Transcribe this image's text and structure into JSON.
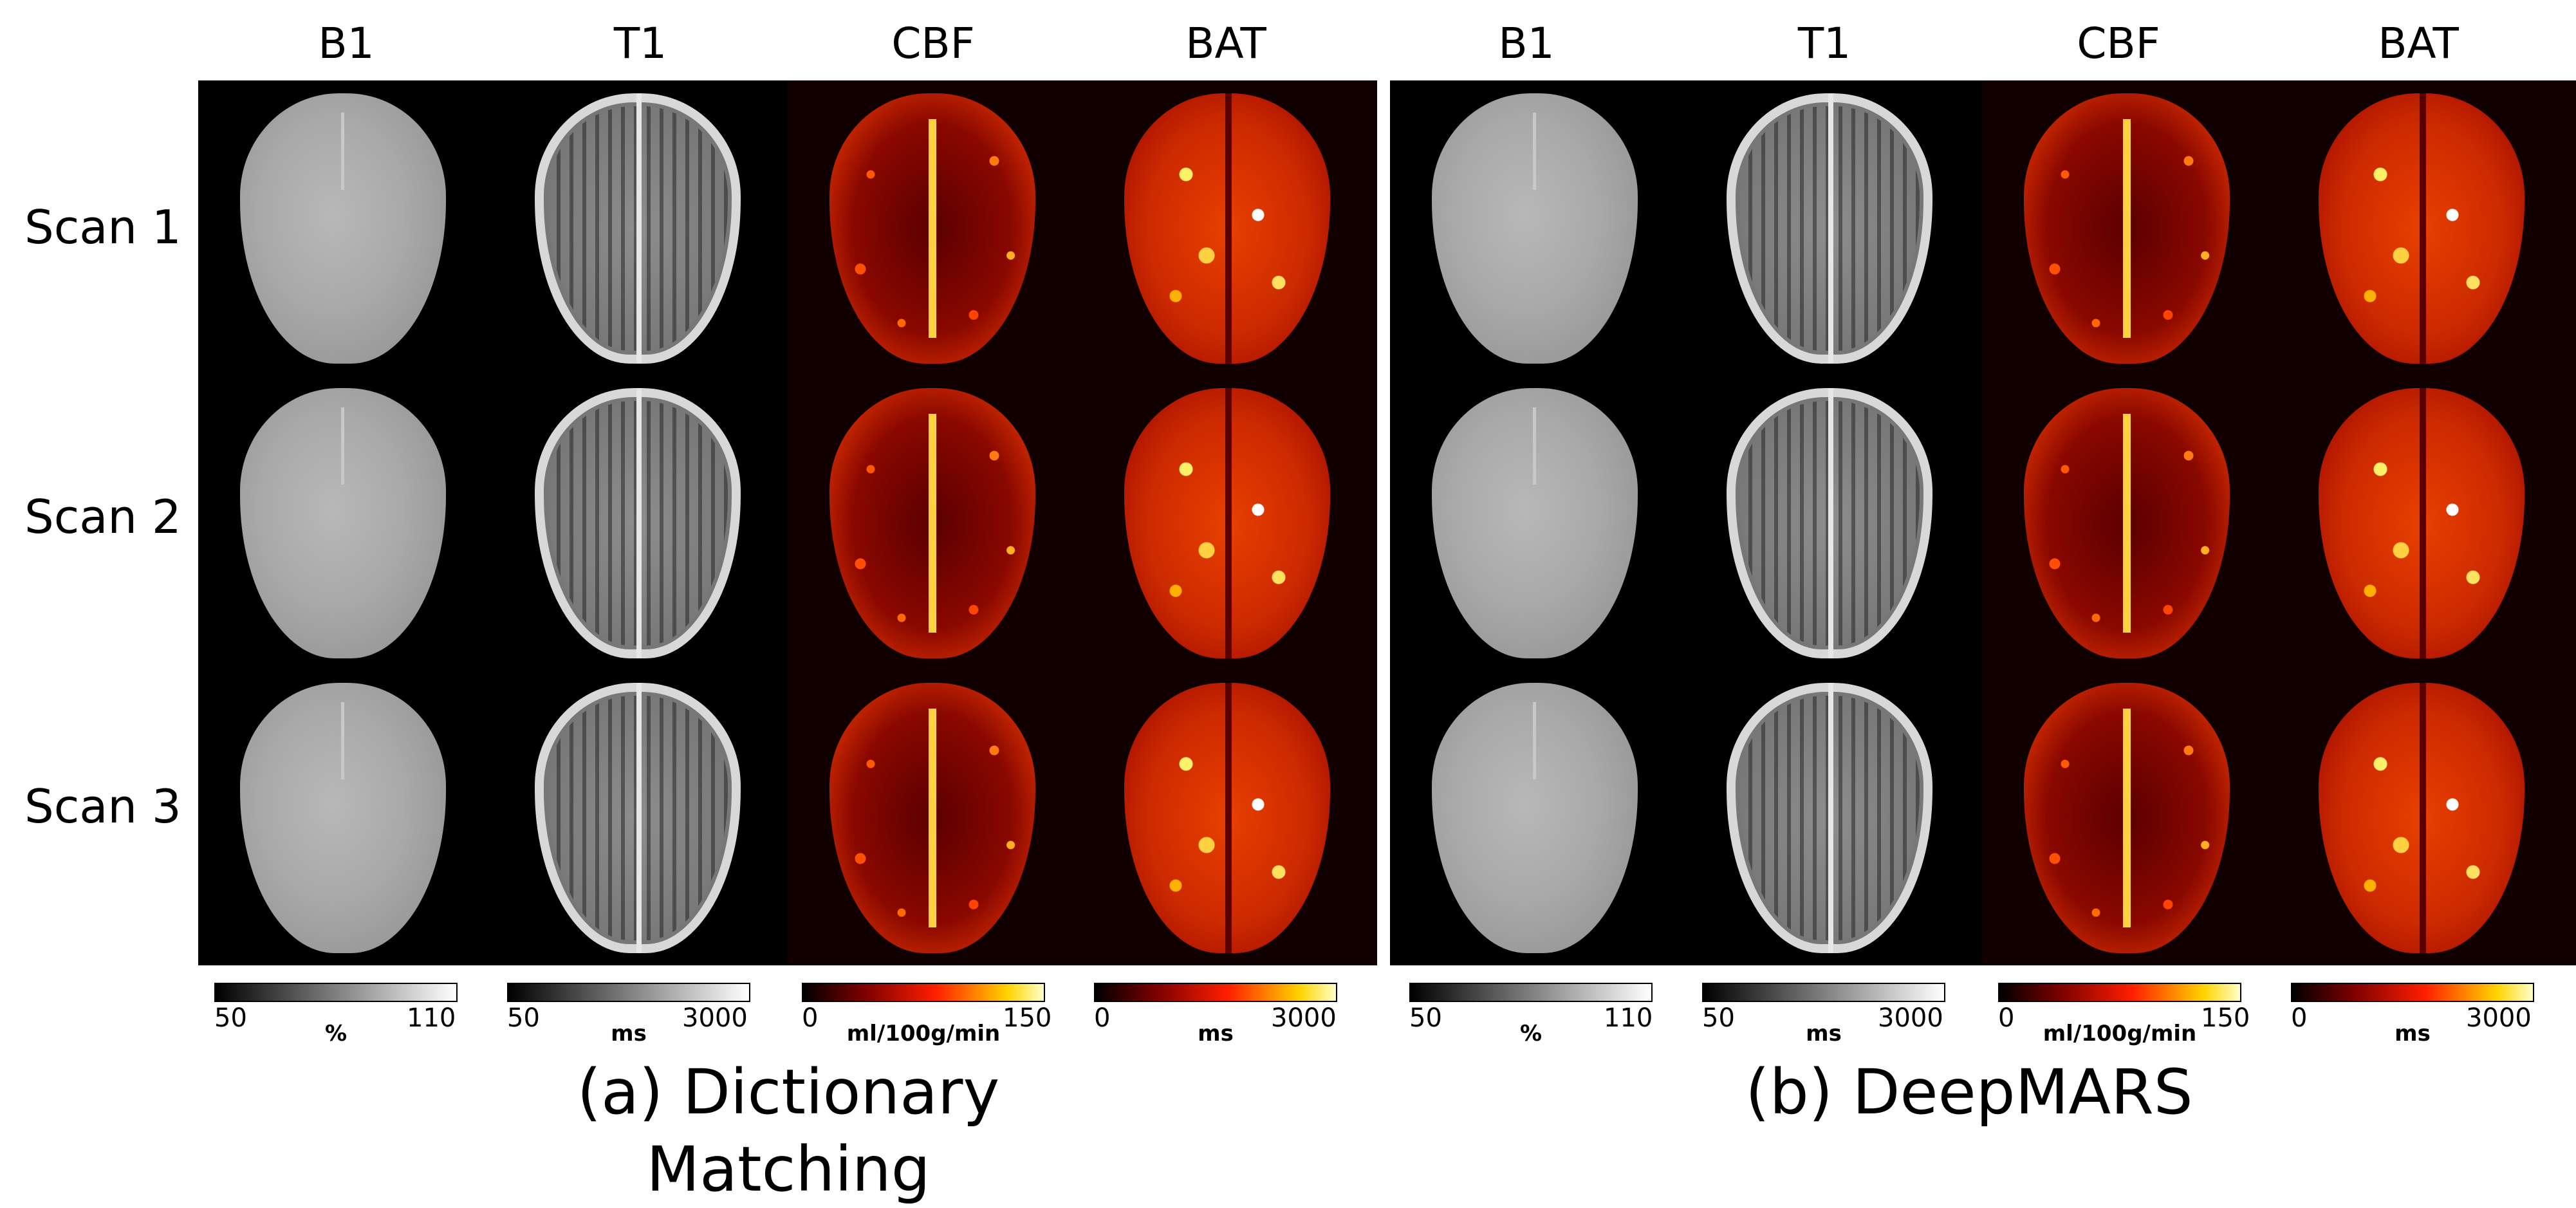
{
  "colors": {
    "background": "#ffffff",
    "panel_background": "#000000",
    "grayscale_colormap": [
      "#000000",
      "#ffffff"
    ],
    "hot_colormap": [
      "#000000",
      "#7a0000",
      "#ff1e00",
      "#ffd400",
      "#ffffc8"
    ]
  },
  "panels": [
    {
      "caption": "(a) Dictionary Matching",
      "columns": [
        "B1",
        "T1",
        "CBF",
        "BAT"
      ],
      "colorbars": [
        {
          "min": "50",
          "max": "110",
          "unit": "%"
        },
        {
          "min": "50",
          "max": "3000",
          "unit": "ms"
        },
        {
          "min": "0",
          "max": "150",
          "unit": "ml/100g/min"
        },
        {
          "min": "0",
          "max": "3000",
          "unit": "ms"
        }
      ]
    },
    {
      "caption": "(b) DeepMARS",
      "columns": [
        "B1",
        "T1",
        "CBF",
        "BAT"
      ],
      "colorbars": [
        {
          "min": "50",
          "max": "110",
          "unit": "%"
        },
        {
          "min": "50",
          "max": "3000",
          "unit": "ms"
        },
        {
          "min": "0",
          "max": "150",
          "unit": "ml/100g/min"
        },
        {
          "min": "0",
          "max": "3000",
          "unit": "ms"
        }
      ]
    }
  ],
  "rows": [
    "Scan 1",
    "Scan 2",
    "Scan 3"
  ]
}
